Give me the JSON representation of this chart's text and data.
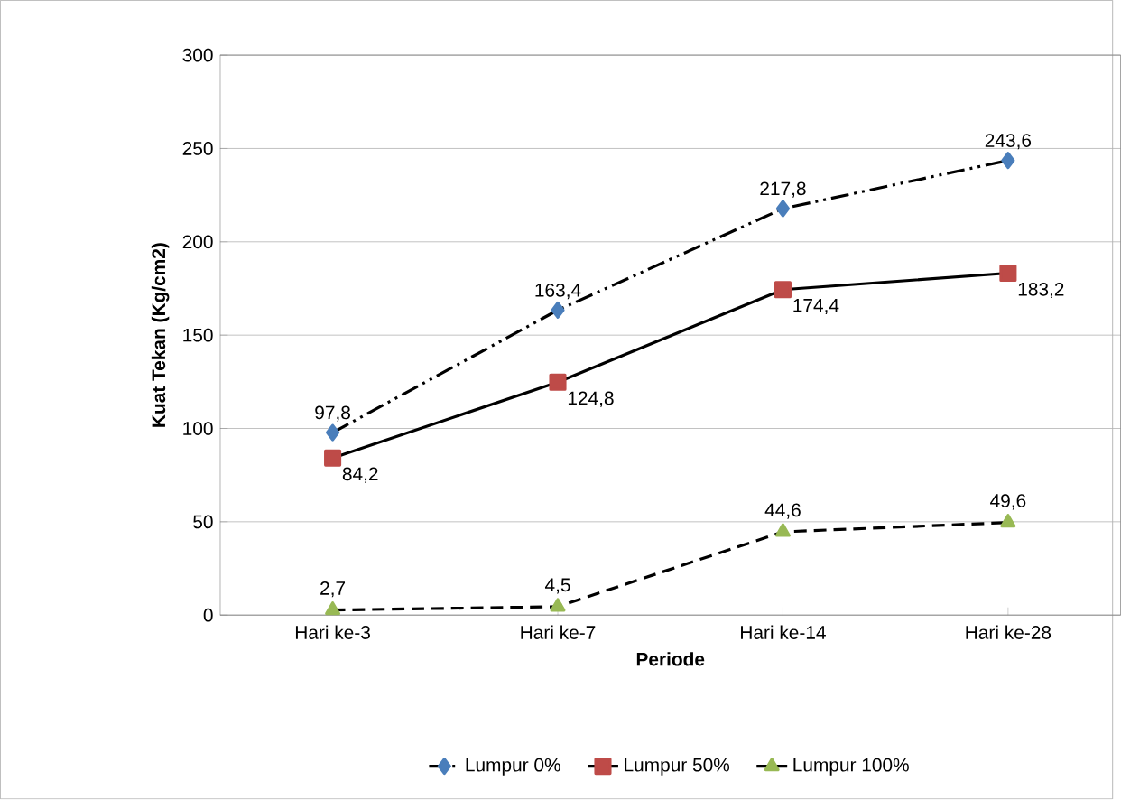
{
  "chart_data": {
    "type": "line",
    "xlabel": "Periode",
    "ylabel": "Kuat Tekan (Kg/cm2)",
    "categories": [
      "Hari ke-3",
      "Hari ke-7",
      "Hari ke-14",
      "Hari ke-28"
    ],
    "ylim": [
      0,
      300
    ],
    "yticks": [
      0,
      50,
      100,
      150,
      200,
      250,
      300
    ],
    "grid": "y",
    "legend": "bottom",
    "series": [
      {
        "name": "Lumpur 0%",
        "color": "#4a7ebb",
        "marker": "diamond",
        "line_style": "dashdot",
        "values": [
          97.8,
          163.4,
          217.8,
          243.6
        ],
        "value_labels": [
          "97,8",
          "163,4",
          "217,8",
          "243,6"
        ]
      },
      {
        "name": "Lumpur 50%",
        "color": "#be4b48",
        "marker": "square",
        "line_style": "solid",
        "values": [
          84.2,
          124.8,
          174.4,
          183.2
        ],
        "value_labels": [
          "84,2",
          "124,8",
          "174,4",
          "183,2"
        ]
      },
      {
        "name": "Lumpur 100%",
        "color": "#98b954",
        "marker": "triangle",
        "line_style": "dashed",
        "values": [
          2.7,
          4.5,
          44.6,
          49.6
        ],
        "value_labels": [
          "2,7",
          "4,5",
          "44,6",
          "49,6"
        ]
      }
    ]
  }
}
